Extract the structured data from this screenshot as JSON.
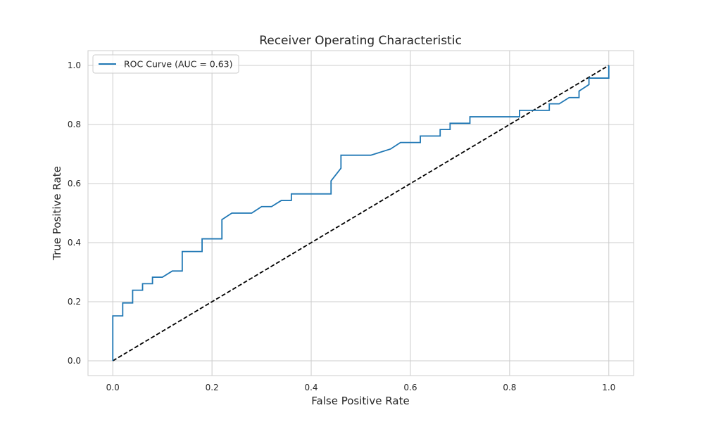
{
  "chart_data": {
    "type": "line",
    "title": "Receiver Operating Characteristic",
    "xlabel": "False Positive Rate",
    "ylabel": "True Positive Rate",
    "xlim": [
      -0.05,
      1.05
    ],
    "ylim": [
      -0.05,
      1.05
    ],
    "xticks": [
      0.0,
      0.2,
      0.4,
      0.6,
      0.8,
      1.0
    ],
    "yticks": [
      0.0,
      0.2,
      0.4,
      0.6,
      0.8,
      1.0
    ],
    "xtick_labels": [
      "0.0",
      "0.2",
      "0.4",
      "0.6",
      "0.8",
      "1.0"
    ],
    "ytick_labels": [
      "0.0",
      "0.2",
      "0.4",
      "0.6",
      "0.8",
      "1.0"
    ],
    "grid": true,
    "legend_position": "top-left",
    "series": [
      {
        "name": "ROC Curve (AUC = 0.63)",
        "color": "#1f77b4",
        "style": "solid",
        "x": [
          0.0,
          0.0,
          0.02,
          0.02,
          0.04,
          0.04,
          0.06,
          0.06,
          0.08,
          0.08,
          0.1,
          0.12,
          0.14,
          0.14,
          0.18,
          0.18,
          0.22,
          0.22,
          0.24,
          0.28,
          0.3,
          0.32,
          0.34,
          0.36,
          0.36,
          0.44,
          0.44,
          0.46,
          0.46,
          0.52,
          0.56,
          0.58,
          0.62,
          0.62,
          0.66,
          0.66,
          0.68,
          0.68,
          0.72,
          0.72,
          0.82,
          0.82,
          0.88,
          0.88,
          0.9,
          0.92,
          0.94,
          0.94,
          0.96,
          0.96,
          1.0,
          1.0
        ],
        "y": [
          0.0,
          0.152,
          0.152,
          0.196,
          0.196,
          0.239,
          0.239,
          0.261,
          0.261,
          0.283,
          0.283,
          0.304,
          0.304,
          0.37,
          0.37,
          0.413,
          0.413,
          0.478,
          0.5,
          0.5,
          0.522,
          0.522,
          0.543,
          0.543,
          0.565,
          0.565,
          0.609,
          0.652,
          0.696,
          0.696,
          0.717,
          0.739,
          0.739,
          0.761,
          0.761,
          0.783,
          0.783,
          0.804,
          0.804,
          0.826,
          0.826,
          0.848,
          0.848,
          0.87,
          0.87,
          0.891,
          0.891,
          0.913,
          0.935,
          0.957,
          0.957,
          1.0
        ]
      },
      {
        "name": "",
        "color": "#000000",
        "style": "dashed",
        "x": [
          0.0,
          1.0
        ],
        "y": [
          0.0,
          1.0
        ]
      }
    ]
  }
}
